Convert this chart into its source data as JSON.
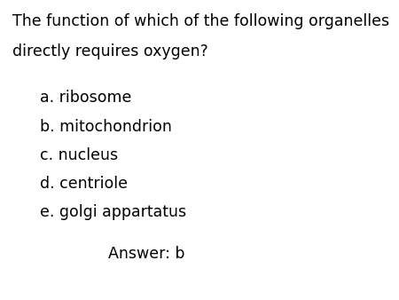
{
  "background_color": "#ffffff",
  "question_line1": "The function of which of the following organelles",
  "question_line2": "directly requires oxygen?",
  "options": [
    "a. ribosome",
    "b. mitochondrion",
    "c. nucleus",
    "d. centriole",
    "e. golgi appartatus"
  ],
  "answer": "Answer: b",
  "question_fontsize": 12.5,
  "options_fontsize": 12.5,
  "answer_fontsize": 12.5,
  "text_color": "#000000",
  "font_family": "sans-serif"
}
